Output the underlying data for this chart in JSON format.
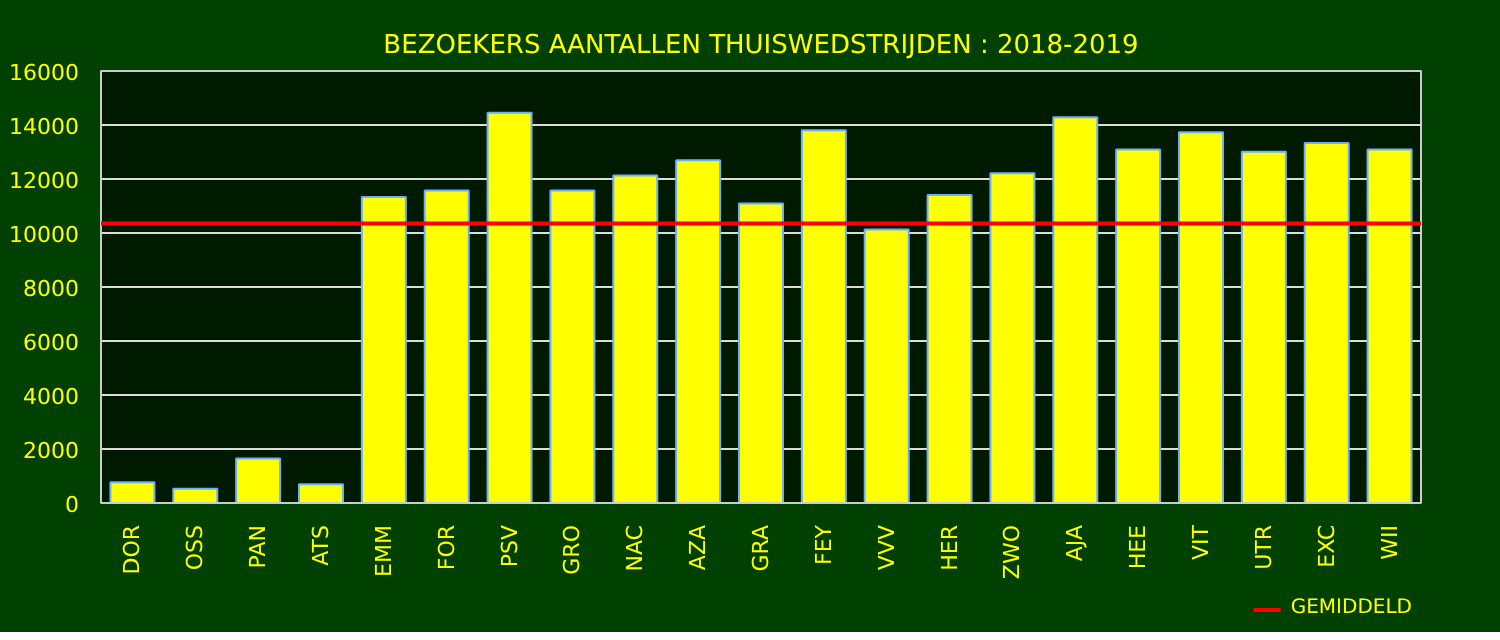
{
  "chart_data": {
    "type": "bar",
    "title": "BEZOEKERS AANTALLEN THUISWEDSTRIJDEN : 2018-2019",
    "categories": [
      "DOR",
      "OSS",
      "PAN",
      "ATS",
      "EMM",
      "FOR",
      "PSV",
      "GRO",
      "NAC",
      "AZA",
      "GRA",
      "FEY",
      "VVV",
      "HER",
      "ZWO",
      "AJA",
      "HEE",
      "VIT",
      "UTR",
      "EXC",
      "WII"
    ],
    "values": [
      770,
      530,
      1650,
      690,
      11330,
      11570,
      14450,
      11570,
      12130,
      12690,
      11090,
      13810,
      10130,
      11410,
      12210,
      14290,
      13090,
      13730,
      13010,
      13330,
      13090
    ],
    "color": "#ffff00",
    "ylim": [
      0,
      16000
    ],
    "yticks": [
      0,
      2000,
      4000,
      6000,
      8000,
      10000,
      12000,
      14000,
      16000
    ],
    "grid": "y",
    "ref_lines": [
      {
        "axis": "y",
        "value": 10350,
        "label": "GEMIDDELD",
        "color": "#ff0000"
      }
    ],
    "legend": "bottom right"
  }
}
